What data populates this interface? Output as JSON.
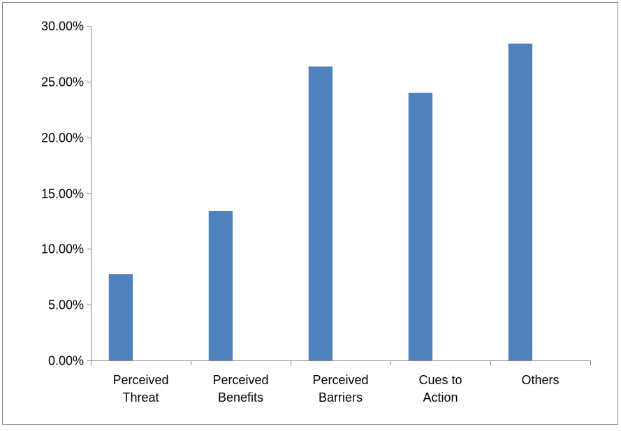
{
  "chart_data": {
    "type": "bar",
    "title": "",
    "xlabel": "",
    "ylabel": "",
    "categories": [
      [
        "Perceived",
        "Threat"
      ],
      [
        "Perceived",
        "Benefits"
      ],
      [
        "Perceived",
        "Barriers"
      ],
      [
        "Cues to",
        "Action"
      ],
      [
        "Others"
      ]
    ],
    "values": [
      0.0775,
      0.134,
      0.2635,
      0.24,
      0.284
    ],
    "ylim": [
      0,
      0.3
    ],
    "yticks": [
      "0.00%",
      "5.00%",
      "10.00%",
      "15.00%",
      "20.00%",
      "25.00%",
      "30.00%"
    ],
    "grid": false,
    "legend": "none",
    "colors": {
      "bar": "#4f81bd",
      "axis": "#868686",
      "border": "#868686"
    }
  }
}
